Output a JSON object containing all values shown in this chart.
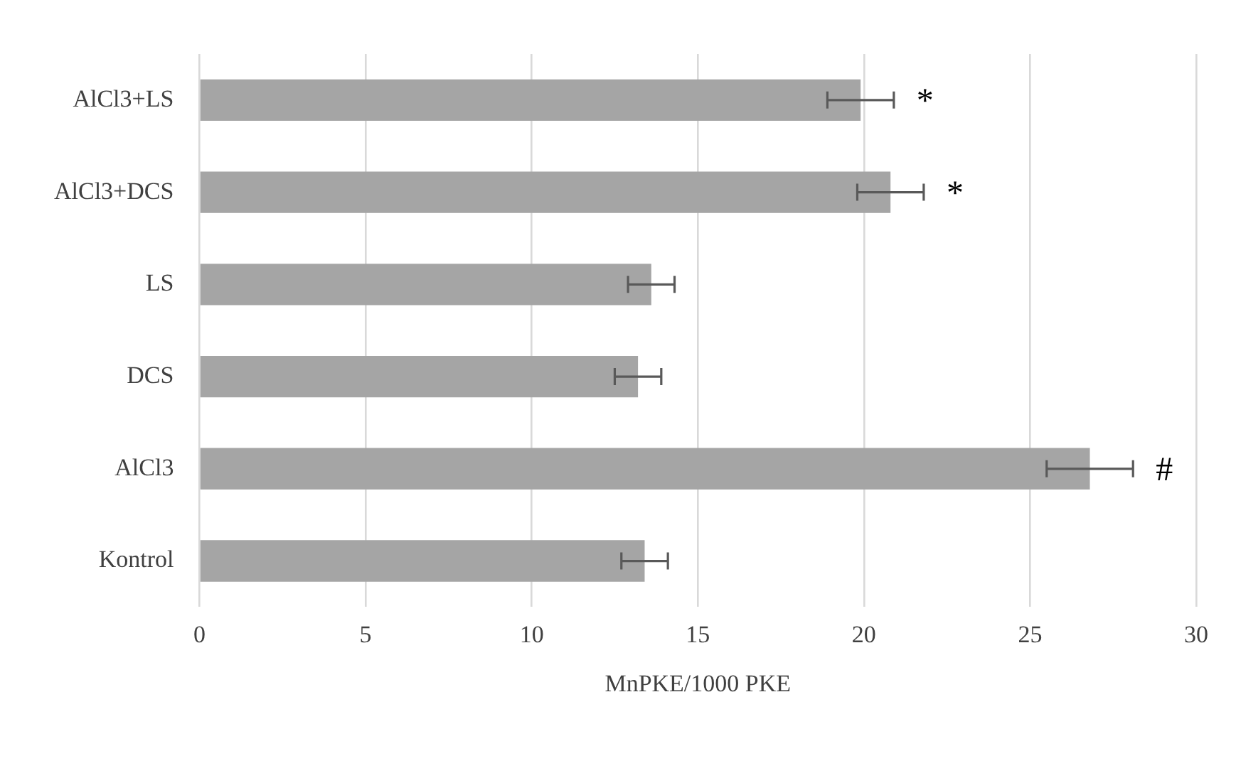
{
  "chart_data": {
    "type": "bar",
    "orientation": "horizontal",
    "xlabel": "MnPKE/1000 PKE",
    "categories": [
      "AlCl3+LS",
      "AlCl3+DCS",
      "LS",
      "DCS",
      "AlCl3",
      "Kontrol"
    ],
    "values": [
      19.9,
      20.8,
      13.6,
      13.2,
      26.8,
      13.4
    ],
    "errors": [
      1.0,
      1.0,
      0.7,
      0.7,
      1.3,
      0.7
    ],
    "color": "#a5a5a5",
    "value_labels": [
      "*",
      "*",
      null,
      null,
      "#",
      null
    ],
    "xlim": [
      0,
      30
    ],
    "xticks": [
      0,
      5,
      10,
      15,
      20,
      25,
      30
    ],
    "grid": "x",
    "legend": false
  }
}
